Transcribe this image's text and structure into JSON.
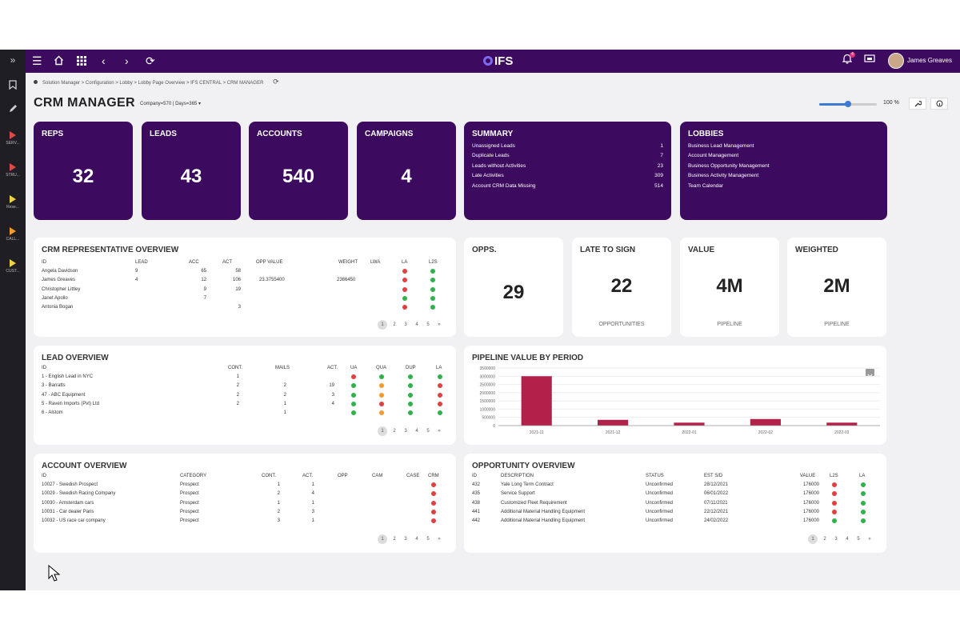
{
  "app": {
    "logo_text": "IFS",
    "user_name": "James Greaves",
    "notif_count": "4"
  },
  "leftbar": {
    "items": [
      {
        "label": "SERV...",
        "color": "#e04848"
      },
      {
        "label": "STRU...",
        "color": "#e04848"
      },
      {
        "label": "Rese...",
        "color": "#f0d040"
      },
      {
        "label": "CALL...",
        "color": "#f39b2c"
      },
      {
        "label": "CUST...",
        "color": "#f0d040"
      }
    ]
  },
  "breadcrumb": "Solution Manager > Configuration > Lobby > Lobby Page Overview > IFS CENTRAL > CRM MANAGER",
  "page": {
    "title": "CRM MANAGER",
    "context": "Company=570 | Days=365 ▾",
    "zoom_label": "100 %",
    "zoom_percent": 50
  },
  "kpis": [
    {
      "label": "REPS",
      "value": "32"
    },
    {
      "label": "LEADS",
      "value": "43"
    },
    {
      "label": "ACCOUNTS",
      "value": "540"
    },
    {
      "label": "CAMPAIGNS",
      "value": "4"
    }
  ],
  "summary": {
    "title": "SUMMARY",
    "rows": [
      {
        "label": "Unassigned Leads",
        "value": "1"
      },
      {
        "label": "Duplicate Leads",
        "value": "7"
      },
      {
        "label": "Leads without Activities",
        "value": "23"
      },
      {
        "label": "Late Activities",
        "value": "309"
      },
      {
        "label": "Account CRM Data Missing",
        "value": "514"
      }
    ]
  },
  "lobbies": {
    "title": "LOBBIES",
    "items": [
      "Business Lead Management",
      "Account Management",
      "Business Opportunity Management",
      "Business Activity Management",
      "Team Calendar"
    ]
  },
  "pager": [
    "1",
    "2",
    "3",
    "4",
    "5",
    "»"
  ],
  "rep_overview": {
    "title": "CRM REPRESENTATIVE OVERVIEW",
    "headers": [
      "ID",
      "LEAD",
      "ACC",
      "ACT",
      "OPP VALUE",
      "WEIGHT",
      "LWA",
      "LA",
      "L2S"
    ],
    "rows": [
      {
        "id": "Angela Davidson",
        "lead": "9",
        "acc": "65",
        "act": "58",
        "opp": "",
        "weight": "",
        "la": "red",
        "l2s": "green"
      },
      {
        "id": "James Greaves",
        "lead": "4",
        "acc": "12",
        "act": "106",
        "opp": "23.3755400",
        "weight": "2366450",
        "la": "red",
        "l2s": "green"
      },
      {
        "id": "Christopher Littley",
        "lead": "",
        "acc": "9",
        "act": "19",
        "opp": "",
        "weight": "",
        "la": "red",
        "l2s": "green"
      },
      {
        "id": "Janet Apollo",
        "lead": "",
        "acc": "7",
        "act": "",
        "opp": "",
        "weight": "",
        "la": "green",
        "l2s": "green"
      },
      {
        "id": "Antonia Bogan",
        "lead": "",
        "acc": "",
        "act": "3",
        "opp": "",
        "weight": "",
        "la": "red",
        "l2s": "green"
      }
    ]
  },
  "opps": {
    "label": "OPPS.",
    "value": "29"
  },
  "late_to_sign": {
    "label": "LATE TO SIGN",
    "value": "22",
    "sub": "OPPORTUNITIES"
  },
  "value_card": {
    "label": "VALUE",
    "value": "4M",
    "sub": "PIPELINE"
  },
  "weighted_card": {
    "label": "WEIGHTED",
    "value": "2M",
    "sub": "PIPELINE"
  },
  "lead_overview": {
    "title": "LEAD OVERVIEW",
    "headers": [
      "ID",
      "CONT.",
      "MAILS",
      "ACT.",
      "UA",
      "QUA",
      "DUP",
      "LA"
    ],
    "rows": [
      {
        "id": "1 - English Lead in NYC",
        "cont": "1",
        "mails": "",
        "act": "",
        "ua": "red",
        "qua": "green",
        "dup": "green",
        "la": "green"
      },
      {
        "id": "3 - Barratts",
        "cont": "2",
        "mails": "2",
        "act": "19",
        "ua": "green",
        "qua": "orange",
        "dup": "green",
        "la": "red"
      },
      {
        "id": "47 - ABC Equipment",
        "cont": "2",
        "mails": "2",
        "act": "3",
        "ua": "green",
        "qua": "orange",
        "dup": "green",
        "la": "red"
      },
      {
        "id": "5 - Raven Imports (Pvt) Ltd",
        "cont": "2",
        "mails": "1",
        "act": "4",
        "ua": "green",
        "qua": "red",
        "dup": "green",
        "la": "red"
      },
      {
        "id": "6 - Alstom",
        "cont": "",
        "mails": "1",
        "act": "",
        "ua": "green",
        "qua": "orange",
        "dup": "green",
        "la": "green"
      }
    ]
  },
  "chart_data": {
    "type": "bar",
    "title": "PIPELINE VALUE BY PERIOD",
    "categories": [
      "2021-11",
      "2021-12",
      "2022-01",
      "2022-02",
      "2022-03"
    ],
    "values": [
      3000000,
      350000,
      180000,
      400000,
      180000
    ],
    "yticks": [
      "3500000",
      "3000000",
      "2500000",
      "2000000",
      "1500000",
      "1000000",
      "500000",
      "0"
    ],
    "ylim": [
      0,
      3500000
    ],
    "color": "#b3204a"
  },
  "account_overview": {
    "title": "ACCOUNT OVERVIEW",
    "headers": [
      "ID",
      "CATEGORY",
      "CONT.",
      "ACT.",
      "OPP",
      "CAM",
      "CASE",
      "CRM"
    ],
    "rows": [
      {
        "id": "10027 - Swedish Prospect",
        "cat": "Prospect",
        "cont": "1",
        "act": "1",
        "crm": "red"
      },
      {
        "id": "10029 - Swedish Racing Company",
        "cat": "Prospect",
        "cont": "2",
        "act": "4",
        "crm": "red"
      },
      {
        "id": "10030 - Amsterdam cars",
        "cat": "Prospect",
        "cont": "1",
        "act": "1",
        "crm": "red"
      },
      {
        "id": "10031 - Car dealer Paris",
        "cat": "Prospect",
        "cont": "2",
        "act": "3",
        "crm": "red"
      },
      {
        "id": "10032 - US race car company",
        "cat": "Prospect",
        "cont": "3",
        "act": "1",
        "crm": "red"
      }
    ]
  },
  "opportunity_overview": {
    "title": "OPPORTUNITY OVERVIEW",
    "headers": [
      "ID",
      "DESCRIPTION",
      "STATUS",
      "EST S/D",
      "VALUE",
      "L2S",
      "LA"
    ],
    "rows": [
      {
        "id": "432",
        "desc": "Yale Long Term Contract",
        "status": "Unconfirmed",
        "est": "28/12/2021",
        "value": "176000",
        "l2s": "red",
        "la": "green"
      },
      {
        "id": "435",
        "desc": "Service Support",
        "status": "Unconfirmed",
        "est": "06/01/2022",
        "value": "176000",
        "l2s": "red",
        "la": "green"
      },
      {
        "id": "438",
        "desc": "Customized Fleet Requirement",
        "status": "Unconfirmed",
        "est": "07/11/2021",
        "value": "176000",
        "l2s": "red",
        "la": "green"
      },
      {
        "id": "441",
        "desc": "Additional Material Handling Equipment",
        "status": "Unconfirmed",
        "est": "22/12/2021",
        "value": "176000",
        "l2s": "red",
        "la": "green"
      },
      {
        "id": "442",
        "desc": "Additional Material Handling Equipment",
        "status": "Unconfirmed",
        "est": "24/02/2022",
        "value": "176000",
        "l2s": "green",
        "la": "green"
      }
    ]
  },
  "colors": {
    "red": "#e04040",
    "green": "#2fb24c",
    "orange": "#f39b2c",
    "purple": "#3c0a5e"
  }
}
